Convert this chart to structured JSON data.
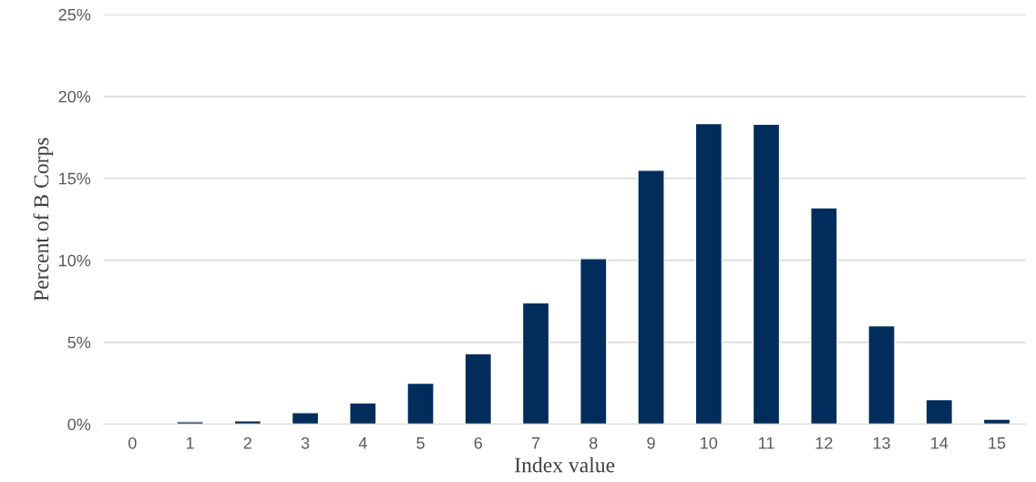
{
  "chart_data": {
    "type": "bar",
    "xlabel": "Index value",
    "ylabel": "Percent of B Corps",
    "categories": [
      "0",
      "1",
      "2",
      "3",
      "4",
      "5",
      "6",
      "7",
      "8",
      "9",
      "10",
      "11",
      "12",
      "13",
      "14",
      "15"
    ],
    "series": [
      {
        "color": "#002d5b",
        "values": [
          null,
          0.15,
          0.2,
          0.7,
          1.3,
          2.5,
          4.3,
          7.4,
          10.1,
          15.5,
          18.35,
          18.3,
          13.2,
          6.0,
          1.5,
          0.3
        ]
      }
    ],
    "ylim": [
      0,
      25
    ],
    "yticks": [
      {
        "value": 0,
        "label": "0%"
      },
      {
        "value": 5,
        "label": "5%"
      },
      {
        "value": 10,
        "label": "10%"
      },
      {
        "value": 15,
        "label": "15%"
      },
      {
        "value": 20,
        "label": "20%"
      },
      {
        "value": 25,
        "label": "25%"
      }
    ],
    "grid": "y",
    "legend": false
  }
}
